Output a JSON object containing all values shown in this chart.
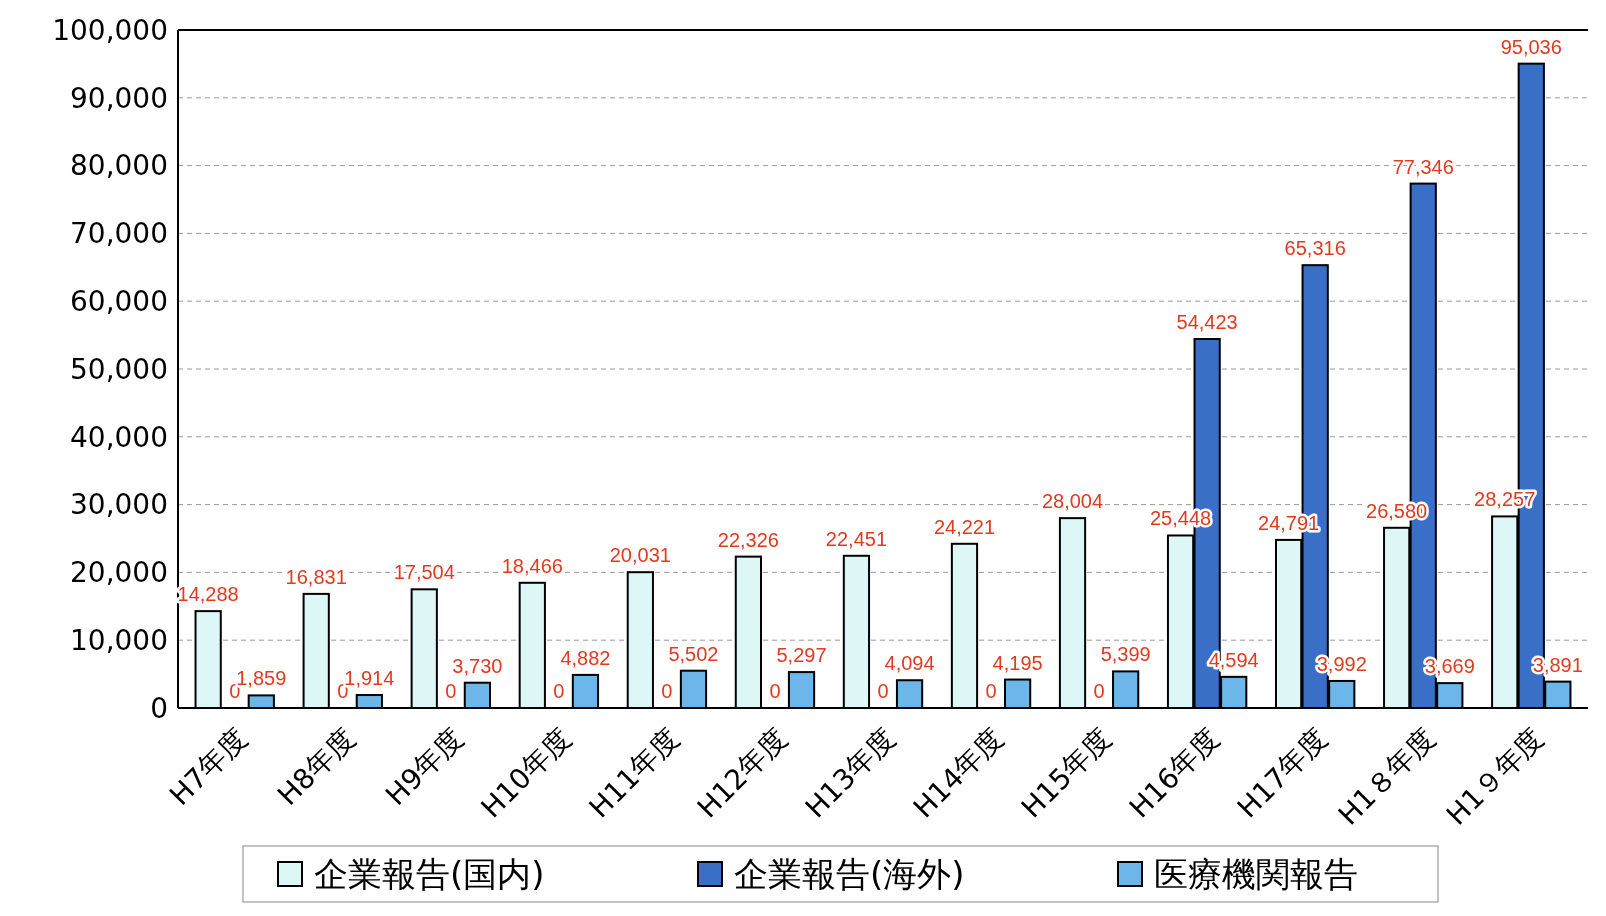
{
  "chart_data": {
    "type": "bar",
    "categories": [
      "H7年度",
      "H8年度",
      "H9年度",
      "H10年度",
      "H11年度",
      "H12年度",
      "H13年度",
      "H14年度",
      "H15年度",
      "H16年度",
      "H17年度",
      "H1８年度",
      "H1９年度"
    ],
    "series": [
      {
        "name": "企業報告(国内)",
        "color": "#ddf6f6",
        "values": [
          14288,
          16831,
          17504,
          18466,
          20031,
          22326,
          22451,
          24221,
          28004,
          25448,
          24791,
          26580,
          28257
        ],
        "value_labels": [
          "14,288",
          "16,831",
          "17,504",
          "18,466",
          "20,031",
          "22,326",
          "22,451",
          "24,221",
          "28,004",
          "25,448",
          "24,791",
          "26,580",
          "28,257"
        ]
      },
      {
        "name": "企業報告(海外)",
        "color": "#3a6fc8",
        "values": [
          0,
          0,
          0,
          0,
          0,
          0,
          0,
          0,
          0,
          54423,
          65316,
          77346,
          95036
        ],
        "value_labels": [
          "0",
          "0",
          "0",
          "0",
          "0",
          "0",
          "0",
          "0",
          "0",
          "54,423",
          "65,316",
          "77,346",
          "95,036"
        ]
      },
      {
        "name": "医療機関報告",
        "color": "#6cb6ea",
        "values": [
          1859,
          1914,
          3730,
          4882,
          5502,
          5297,
          4094,
          4195,
          5399,
          4594,
          3992,
          3669,
          3891
        ],
        "value_labels": [
          "1,859",
          "1,914",
          "3,730",
          "4,882",
          "5,502",
          "5,297",
          "4,094",
          "4,195",
          "5,399",
          "4,594",
          "3,992",
          "3,669",
          "3,891"
        ]
      }
    ],
    "ylim": [
      0,
      100000
    ],
    "yticks": [
      {
        "value": 0,
        "label": "0"
      },
      {
        "value": 10000,
        "label": "10,000"
      },
      {
        "value": 20000,
        "label": "20,000"
      },
      {
        "value": 30000,
        "label": "30,000"
      },
      {
        "value": 40000,
        "label": "40,000"
      },
      {
        "value": 50000,
        "label": "50,000"
      },
      {
        "value": 60000,
        "label": "60,000"
      },
      {
        "value": 70000,
        "label": "70,000"
      },
      {
        "value": 80000,
        "label": "80,000"
      },
      {
        "value": 90000,
        "label": "90,000"
      },
      {
        "value": 100000,
        "label": "100,000"
      }
    ],
    "grid": "y",
    "legend": "bottom"
  }
}
